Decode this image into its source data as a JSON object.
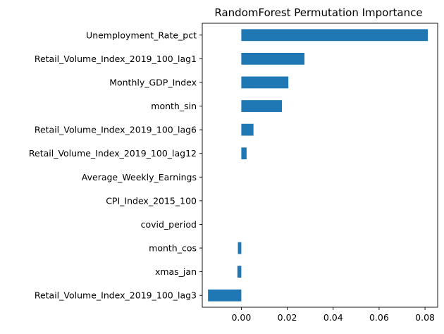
{
  "chart_data": {
    "type": "bar",
    "orientation": "horizontal",
    "title": "RandomForest Permutation Importance",
    "xlabel": "",
    "ylabel": "",
    "categories": [
      "Unemployment_Rate_pct",
      "Retail_Volume_Index_2019_100_lag1",
      "Monthly_GDP_Index",
      "month_sin",
      "Retail_Volume_Index_2019_100_lag6",
      "Retail_Volume_Index_2019_100_lag12",
      "Average_Weekly_Earnings",
      "CPI_Index_2015_100",
      "covid_period",
      "month_cos",
      "xmas_jan",
      "Retail_Volume_Index_2019_100_lag3"
    ],
    "values": [
      0.0812,
      0.0275,
      0.0205,
      0.0177,
      0.0053,
      0.0023,
      0.0,
      0.0,
      0.0,
      -0.0015,
      -0.0017,
      -0.0145
    ],
    "xlim": [
      -0.017,
      0.0855
    ],
    "xticks": [
      0.0,
      0.02,
      0.04,
      0.06,
      0.08
    ],
    "xtick_labels": [
      "0.00",
      "0.02",
      "0.04",
      "0.06",
      "0.08"
    ],
    "bar_color": "#1f77b4",
    "grid": false,
    "legend": "none"
  }
}
